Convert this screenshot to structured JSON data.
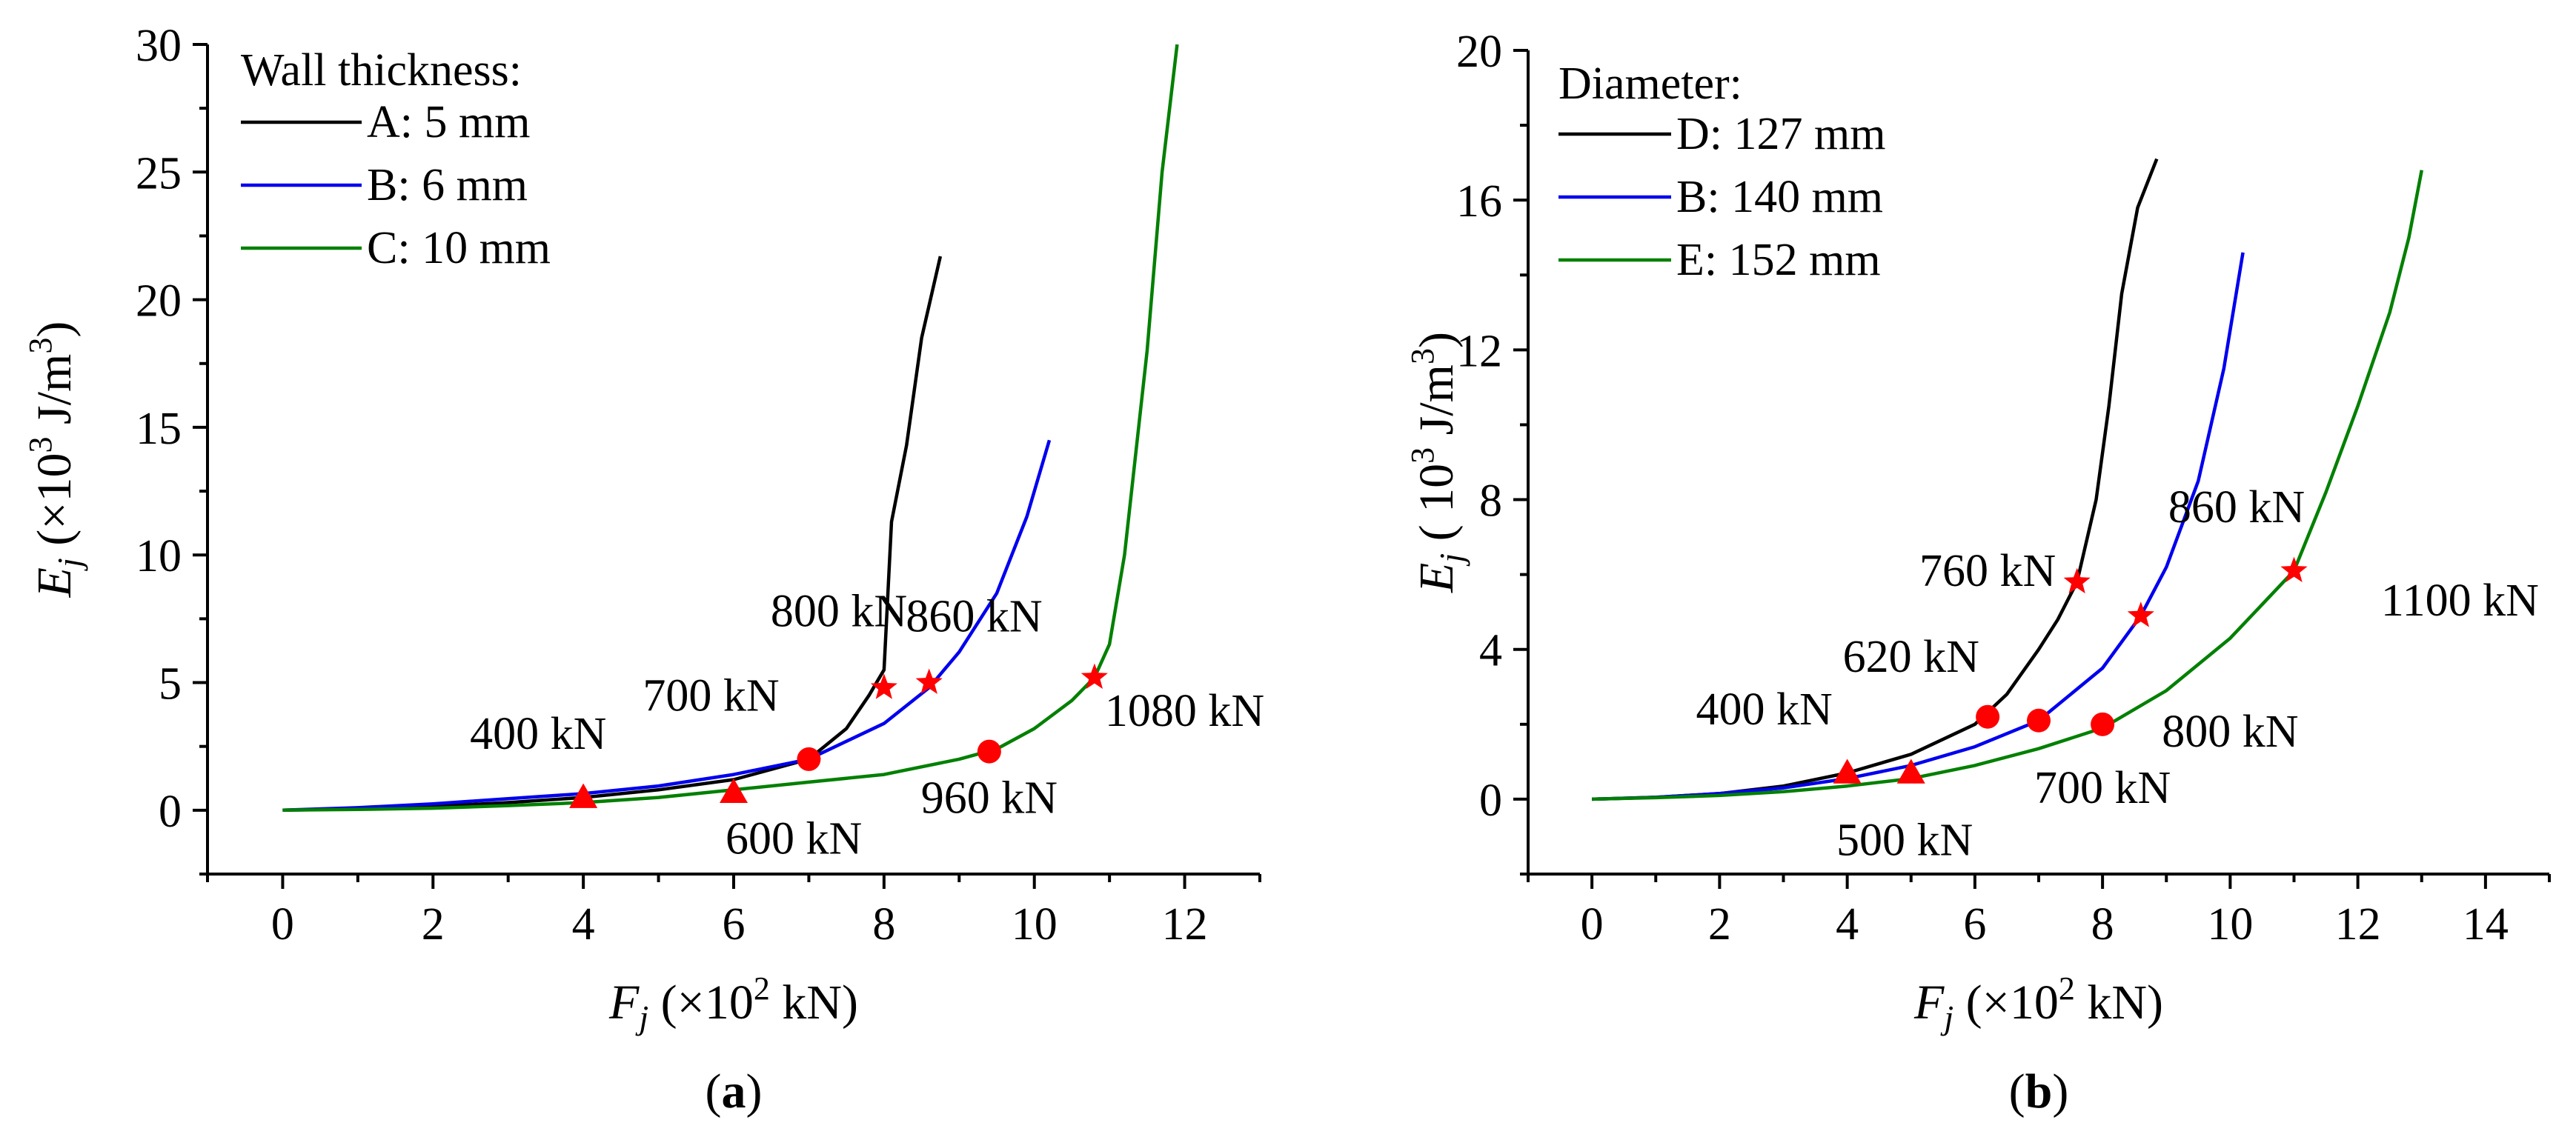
{
  "chart_data": [
    {
      "type": "line",
      "panel_label": "(a)",
      "panel_letter": "a",
      "xlabel": {
        "var": "F",
        "sub": "j",
        "unit_pre": " (×10",
        "unit_sup": "2",
        "unit_post": " kN)"
      },
      "ylabel": {
        "var": "E",
        "sub": "j",
        "unit_pre": " (×10",
        "unit_sup": "3",
        "unit_mid": " J/m",
        "unit_sup2": "3",
        "unit_post": ")"
      },
      "xlim": [
        -1,
        13
      ],
      "ylim": [
        -2.5,
        30
      ],
      "xticks": [
        0,
        2,
        4,
        6,
        8,
        10,
        12
      ],
      "xtick_labels": [
        "0",
        "2",
        "4",
        "6",
        "8",
        "10",
        "12"
      ],
      "yticks": [
        0,
        5,
        10,
        15,
        20,
        25,
        30
      ],
      "ytick_labels": [
        "0",
        "5",
        "10",
        "15",
        "20",
        "25",
        "30"
      ],
      "legend_title": "Wall thickness:",
      "legend_location": "top-left",
      "series": [
        {
          "name": "A: 5 mm",
          "color": "#000000",
          "x": [
            0,
            1,
            2,
            3,
            4,
            5,
            6,
            7,
            7.5,
            7.8,
            8.0,
            8.1,
            8.3,
            8.5,
            8.75
          ],
          "y": [
            0,
            0.05,
            0.15,
            0.3,
            0.5,
            0.8,
            1.2,
            2.0,
            3.2,
            4.5,
            5.5,
            11.3,
            14.3,
            18.5,
            21.7
          ]
        },
        {
          "name": "B: 6 mm",
          "color": "#0000ee",
          "x": [
            0,
            1,
            2,
            3,
            4,
            5,
            6,
            7,
            8,
            8.6,
            9,
            9.5,
            9.9,
            10.2
          ],
          "y": [
            0,
            0.1,
            0.25,
            0.45,
            0.65,
            0.95,
            1.4,
            2.0,
            3.4,
            4.8,
            6.2,
            8.5,
            11.5,
            14.5
          ]
        },
        {
          "name": "C: 10 mm",
          "color": "#008000",
          "x": [
            0,
            1,
            2,
            3,
            4,
            5,
            6,
            7,
            8,
            9,
            9.5,
            10.0,
            10.5,
            10.8,
            11.0,
            11.2,
            11.5,
            11.7,
            11.9
          ],
          "y": [
            0,
            0.03,
            0.08,
            0.18,
            0.3,
            0.5,
            0.8,
            1.1,
            1.4,
            2.0,
            2.4,
            3.2,
            4.3,
            5.2,
            6.5,
            10.0,
            18.0,
            25.0,
            30.0
          ]
        }
      ],
      "markers": [
        {
          "shape": "triangle",
          "x": 4.0,
          "y": 0.5
        },
        {
          "shape": "triangle",
          "x": 6.0,
          "y": 0.7
        },
        {
          "shape": "circle",
          "x": 7.0,
          "y": 2.0
        },
        {
          "shape": "circle",
          "x": 9.4,
          "y": 2.3
        },
        {
          "shape": "star",
          "x": 8.0,
          "y": 4.8
        },
        {
          "shape": "star",
          "x": 8.6,
          "y": 5.0
        },
        {
          "shape": "star",
          "x": 10.8,
          "y": 5.2
        }
      ],
      "annotations": [
        {
          "text": "400 kN",
          "x": 3.4,
          "y": 2.4
        },
        {
          "text": "600 kN",
          "x": 6.8,
          "y": -1.7
        },
        {
          "text": "700 kN",
          "x": 5.7,
          "y": 3.9
        },
        {
          "text": "800 kN",
          "x": 7.4,
          "y": 7.2
        },
        {
          "text": "860 kN",
          "x": 9.2,
          "y": 7.0
        },
        {
          "text": "960 kN",
          "x": 9.4,
          "y": -0.1
        },
        {
          "text": "1080 kN",
          "x": 12.0,
          "y": 3.3
        }
      ]
    },
    {
      "type": "line",
      "panel_label": "(b)",
      "panel_letter": "b",
      "xlabel": {
        "var": "F",
        "sub": "j",
        "unit_pre": " (×10",
        "unit_sup": "2",
        "unit_post": " kN)"
      },
      "ylabel": {
        "var": "E",
        "sub": "j",
        "unit_pre": " (  10",
        "unit_sup": "3",
        "unit_mid": " J/m",
        "unit_sup2": "3",
        "unit_post": ")"
      },
      "xlim": [
        -1,
        15
      ],
      "ylim": [
        -2,
        20
      ],
      "xticks": [
        0,
        2,
        4,
        6,
        8,
        10,
        12,
        14
      ],
      "xtick_labels": [
        "0",
        "2",
        "4",
        "6",
        "8",
        "10",
        "12",
        "14"
      ],
      "yticks": [
        0,
        4,
        8,
        12,
        16,
        20
      ],
      "ytick_labels": [
        "0",
        "4",
        "8",
        "12",
        "16",
        "20"
      ],
      "legend_title": "Diameter:",
      "legend_location": "top-left",
      "series": [
        {
          "name": "D: 127 mm",
          "color": "#000000",
          "x": [
            0,
            1,
            2,
            3,
            4,
            5,
            6,
            6.5,
            7,
            7.3,
            7.6,
            7.9,
            8.1,
            8.3,
            8.55,
            8.85
          ],
          "y": [
            0,
            0.05,
            0.15,
            0.35,
            0.7,
            1.2,
            2.0,
            2.8,
            4.0,
            4.8,
            5.8,
            8.0,
            10.5,
            13.5,
            15.8,
            17.1
          ]
        },
        {
          "name": "B: 140 mm",
          "color": "#0000ee",
          "x": [
            0,
            1,
            2,
            3,
            4,
            5,
            6,
            7,
            8,
            8.6,
            9,
            9.5,
            9.9,
            10.2
          ],
          "y": [
            0,
            0.05,
            0.15,
            0.3,
            0.55,
            0.9,
            1.4,
            2.1,
            3.5,
            4.9,
            6.2,
            8.5,
            11.5,
            14.6
          ]
        },
        {
          "name": "E: 152 mm",
          "color": "#008000",
          "x": [
            0,
            1,
            2,
            3,
            4,
            5,
            6,
            7,
            8,
            9,
            10,
            11,
            11.5,
            12,
            12.5,
            12.8,
            13.0
          ],
          "y": [
            0,
            0.04,
            0.1,
            0.2,
            0.35,
            0.55,
            0.9,
            1.35,
            1.9,
            2.9,
            4.3,
            6.1,
            8.2,
            10.5,
            13.0,
            15.0,
            16.8
          ]
        }
      ],
      "markers": [
        {
          "shape": "triangle",
          "x": 4.0,
          "y": 0.7
        },
        {
          "shape": "triangle",
          "x": 5.0,
          "y": 0.7
        },
        {
          "shape": "circle",
          "x": 6.2,
          "y": 2.2
        },
        {
          "shape": "circle",
          "x": 7.0,
          "y": 2.1
        },
        {
          "shape": "circle",
          "x": 8.0,
          "y": 2.0
        },
        {
          "shape": "star",
          "x": 7.6,
          "y": 5.8
        },
        {
          "shape": "star",
          "x": 8.6,
          "y": 4.9
        },
        {
          "shape": "star",
          "x": 11.0,
          "y": 6.1
        }
      ],
      "annotations": [
        {
          "text": "400 kN",
          "x": 2.7,
          "y": 2.0
        },
        {
          "text": "500 kN",
          "x": 4.9,
          "y": -1.5
        },
        {
          "text": "620 kN",
          "x": 5.0,
          "y": 3.4
        },
        {
          "text": "700 kN",
          "x": 8.0,
          "y": -0.1
        },
        {
          "text": "760 kN",
          "x": 6.2,
          "y": 5.7
        },
        {
          "text": "800 kN",
          "x": 10.0,
          "y": 1.4
        },
        {
          "text": "860 kN",
          "x": 10.1,
          "y": 7.4
        },
        {
          "text": "1100 kN",
          "x": 13.6,
          "y": 4.9
        }
      ]
    }
  ]
}
